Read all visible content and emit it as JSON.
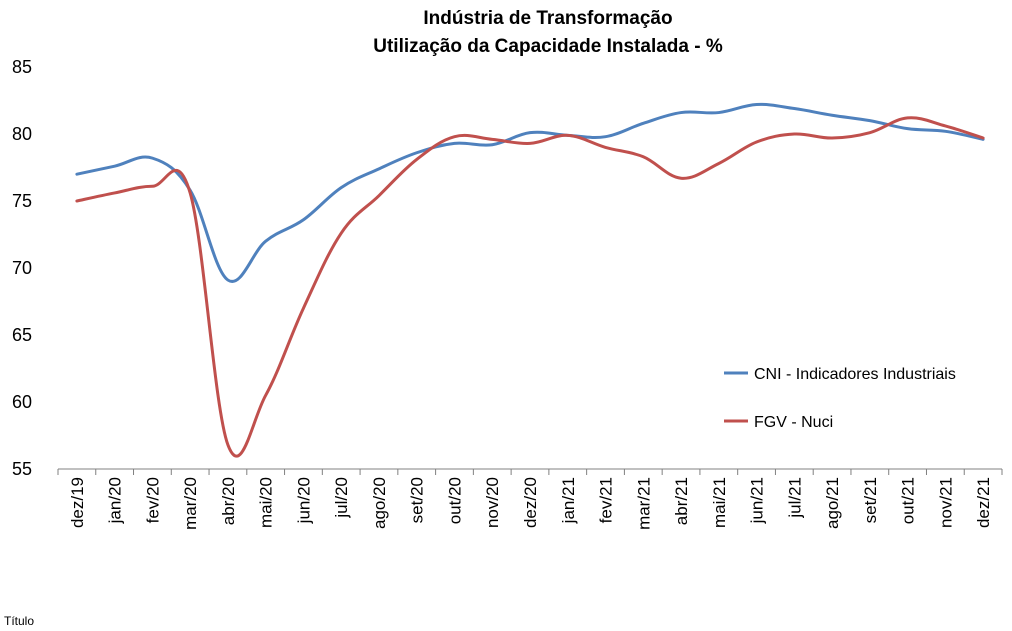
{
  "chart_data": {
    "type": "line",
    "title": [
      "Indústria de Transformação",
      "Utilização da Capacidade Instalada - %"
    ],
    "ylim": [
      55,
      85
    ],
    "yticks": [
      "85",
      "80",
      "75",
      "70",
      "65",
      "60",
      "55"
    ],
    "categories": [
      "dez/19",
      "jan/20",
      "fev/20",
      "mar/20",
      "abr/20",
      "mai/20",
      "jun/20",
      "jul/20",
      "ago/20",
      "set/20",
      "out/20",
      "nov/20",
      "dez/20",
      "jan/21",
      "fev/21",
      "mar/21",
      "abr/21",
      "mai/21",
      "jun/21",
      "jul/21",
      "ago/21",
      "set/21",
      "out/21",
      "nov/21",
      "dez/21"
    ],
    "series": [
      {
        "name": "CNI - Indicadores Industriais",
        "color": "#4F81BD",
        "values": [
          77.0,
          77.6,
          78.2,
          75.8,
          69.1,
          72.0,
          73.6,
          76.0,
          77.4,
          78.6,
          79.3,
          79.2,
          80.1,
          79.9,
          79.8,
          80.8,
          81.6,
          81.6,
          82.2,
          81.9,
          81.4,
          81.0,
          80.4,
          80.2,
          79.6
        ]
      },
      {
        "name": "FGV - Nuci",
        "color": "#C0504D",
        "values": [
          75.0,
          75.6,
          76.1,
          75.6,
          56.8,
          60.5,
          67.0,
          72.6,
          75.4,
          78.1,
          79.8,
          79.6,
          79.3,
          79.9,
          79.0,
          78.3,
          76.7,
          77.8,
          79.4,
          80.0,
          79.7,
          80.1,
          81.2,
          80.6,
          79.7
        ]
      }
    ],
    "legend_position": "right",
    "grid": false
  },
  "footer": {
    "label": "Título"
  }
}
